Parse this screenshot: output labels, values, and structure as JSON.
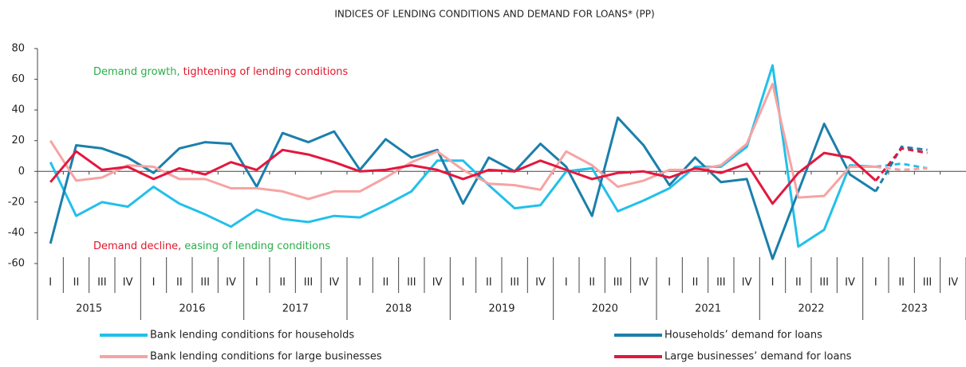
{
  "chart_data": {
    "type": "line",
    "title": "INDICES OF LENDING CONDITIONS AND DEMAND FOR LOANS* (PP)",
    "categories": [
      "I",
      "II",
      "III",
      "IV",
      "I",
      "II",
      "III",
      "IV",
      "I",
      "II",
      "III",
      "IV",
      "I",
      "II",
      "III",
      "IV",
      "I",
      "II",
      "III",
      "IV",
      "I",
      "II",
      "III",
      "IV",
      "I",
      "II",
      "III",
      "IV",
      "I",
      "II",
      "III",
      "IV",
      "I",
      "II",
      "III",
      "IV"
    ],
    "years": [
      "2015",
      "2016",
      "2017",
      "2018",
      "2019",
      "2020",
      "2021",
      "2022",
      "2023"
    ],
    "forecast_start": 33,
    "ylim": [
      -60,
      80
    ],
    "yticks": [
      -60,
      -40,
      -20,
      0,
      20,
      40,
      60,
      80
    ],
    "annotations": [
      {
        "parts": [
          {
            "text": "Demand growth,",
            "color": "#2aad4a"
          },
          {
            "text": "tightening of lending conditions",
            "color": "#e0162b"
          }
        ]
      },
      {
        "parts": [
          {
            "text": "Demand decline,",
            "color": "#e0162b"
          },
          {
            "text": "easing of lending conditions",
            "color": "#2aad4a"
          }
        ]
      }
    ],
    "series": [
      {
        "name": "Bank lending conditions for households",
        "color": "#22c0ea",
        "values": [
          6,
          -29,
          -20,
          -23,
          -10,
          -21,
          -28,
          -36,
          -25,
          -31,
          -33,
          -29,
          -30,
          -22,
          -13,
          7,
          7,
          -9,
          -24,
          -22,
          0,
          2,
          -26,
          -19,
          -11,
          3,
          3,
          16,
          69,
          -49,
          -38,
          4,
          3,
          5,
          2,
          null
        ]
      },
      {
        "name": "Households’ demand for loans",
        "color": "#1b7fab",
        "values": [
          -47,
          17,
          15,
          9,
          -1,
          15,
          19,
          18,
          -10,
          25,
          19,
          26,
          1,
          21,
          9,
          14,
          -21,
          9,
          0,
          18,
          3,
          -29,
          35,
          17,
          -9,
          9,
          -7,
          -5,
          -57,
          -13,
          31,
          -2,
          -13,
          16,
          14,
          null
        ]
      },
      {
        "name": "Bank lending conditions for large businesses",
        "color": "#f7a3a3",
        "values": [
          20,
          -6,
          -4,
          4,
          3,
          -5,
          -5,
          -11,
          -11,
          -13,
          -18,
          -13,
          -13,
          -4,
          6,
          13,
          1,
          -8,
          -9,
          -12,
          13,
          4,
          -10,
          -6,
          1,
          1,
          4,
          18,
          57,
          -17,
          -16,
          3,
          3,
          1,
          2,
          null
        ]
      },
      {
        "name": "Large businesses’ demand for loans",
        "color": "#e3173e",
        "values": [
          -7,
          13,
          1,
          3,
          -5,
          2,
          -2,
          6,
          1,
          14,
          11,
          6,
          0,
          1,
          4,
          1,
          -5,
          1,
          0,
          7,
          1,
          -5,
          -1,
          0,
          -4,
          2,
          -1,
          5,
          -21,
          -1,
          12,
          9,
          -6,
          15,
          12,
          null
        ]
      }
    ]
  }
}
